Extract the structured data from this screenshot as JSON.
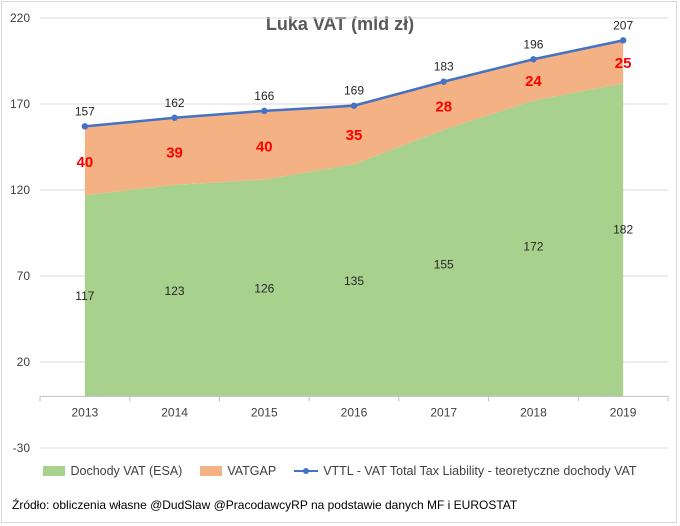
{
  "chart_data": {
    "type": "area",
    "title": "Luka VAT (mld zł)",
    "categories": [
      "2013",
      "2014",
      "2015",
      "2016",
      "2017",
      "2018",
      "2019"
    ],
    "y_ticks": [
      "220",
      "170",
      "120",
      "70",
      "20",
      "-30"
    ],
    "ylim": [
      -30,
      220
    ],
    "grid": true,
    "legend_position": "bottom",
    "series": [
      {
        "name": "Dochody VAT (ESA)",
        "kind": "area",
        "color": "#a9d18e",
        "values": [
          117,
          123,
          126,
          135,
          155,
          172,
          182
        ]
      },
      {
        "name": "VATGAP",
        "kind": "area",
        "color": "#f4b183",
        "values": [
          40,
          39,
          40,
          35,
          28,
          24,
          25
        ]
      },
      {
        "name": "VTTL - VAT Total Tax Liability - teoretyczne dochody VAT",
        "kind": "line",
        "color": "#4472c4",
        "values": [
          157,
          162,
          166,
          169,
          183,
          196,
          207
        ]
      }
    ]
  },
  "source": "Źródło: obliczenia własne @DudSlaw @PracodawcyRP na podstawie danych MF i EUROSTAT"
}
